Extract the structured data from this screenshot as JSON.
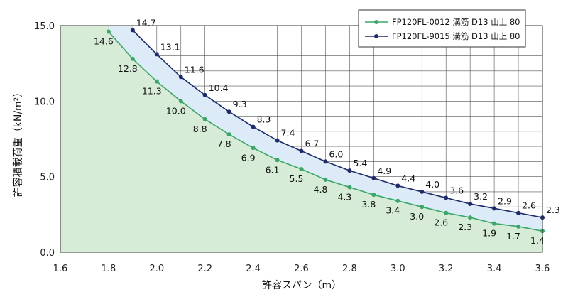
{
  "chart_data": {
    "type": "line",
    "title": "",
    "xlabel": "許容スパン（m）",
    "ylabel": "許容積載荷重（kN/m²）",
    "xlim": [
      1.6,
      3.6
    ],
    "ylim": [
      0.0,
      15.0
    ],
    "xticks": [
      "1.6",
      "1.8",
      "2.0",
      "2.2",
      "2.4",
      "2.6",
      "2.8",
      "3.0",
      "3.2",
      "3.4",
      "3.6"
    ],
    "yticks": [
      "0.0",
      "5.0",
      "10.0",
      "15.0"
    ],
    "grid": true,
    "legend_position": "top-right",
    "series": [
      {
        "name": "FP120FL-0012 溝筋 D13 山上 80",
        "color": "#3aa66a",
        "fill": "#d6ecd6",
        "x": [
          1.8,
          1.9,
          2.0,
          2.1,
          2.2,
          2.3,
          2.4,
          2.5,
          2.6,
          2.7,
          2.8,
          2.9,
          3.0,
          3.1,
          3.2,
          3.3,
          3.4,
          3.5,
          3.6
        ],
        "values": [
          14.6,
          12.8,
          11.3,
          10.0,
          8.8,
          7.8,
          6.9,
          6.1,
          5.5,
          4.8,
          4.3,
          3.8,
          3.4,
          3.0,
          2.6,
          2.3,
          1.9,
          1.7,
          1.4
        ],
        "labels": [
          "14.6",
          "12.8",
          "11.3",
          "10.0",
          "8.8",
          "7.8",
          "6.9",
          "6.1",
          "5.5",
          "4.8",
          "4.3",
          "3.8",
          "3.4",
          "3.0",
          "2.6",
          "2.3",
          "1.9",
          "1.7",
          "1.4"
        ]
      },
      {
        "name": "FP120FL-9015 溝筋 D13 山上 80",
        "color": "#1f2a6b",
        "fill": "#dcebf7",
        "x": [
          1.9,
          2.0,
          2.1,
          2.2,
          2.3,
          2.4,
          2.5,
          2.6,
          2.7,
          2.8,
          2.9,
          3.0,
          3.1,
          3.2,
          3.3,
          3.4,
          3.5,
          3.6
        ],
        "values": [
          14.7,
          13.1,
          11.6,
          10.4,
          9.3,
          8.3,
          7.4,
          6.7,
          6.0,
          5.4,
          4.9,
          4.4,
          4.0,
          3.6,
          3.2,
          2.9,
          2.6,
          2.3
        ],
        "labels": [
          "14.7",
          "13.1",
          "11.6",
          "10.4",
          "9.3",
          "8.3",
          "7.4",
          "6.7",
          "6.0",
          "5.4",
          "4.9",
          "4.4",
          "4.0",
          "3.6",
          "3.2",
          "2.9",
          "2.6",
          "2.3"
        ]
      }
    ]
  }
}
